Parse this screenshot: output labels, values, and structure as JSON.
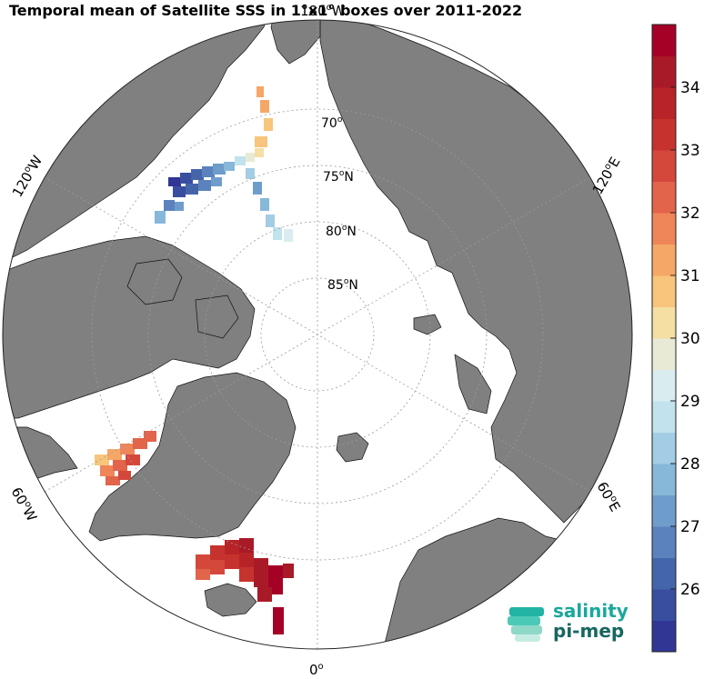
{
  "title": "Temporal mean of Satellite SSS in 1°x1° boxes over 2011-2022",
  "map": {
    "projection": "north polar stereographic",
    "land_color": "#808080",
    "ocean_color": "#ffffff",
    "lat_labels": [
      {
        "text": "70",
        "sup": "o"
      },
      {
        "text": "75",
        "sup": "o",
        "suffix": "N"
      },
      {
        "text": "80",
        "sup": "o",
        "suffix": "N"
      },
      {
        "text": "85",
        "sup": "o",
        "suffix": "N"
      }
    ],
    "lon_labels": [
      {
        "text": "180",
        "sup": "o",
        "suffix": "W"
      },
      {
        "text": "120",
        "sup": "o",
        "suffix": "W"
      },
      {
        "text": "120",
        "sup": "o",
        "suffix": "E"
      },
      {
        "text": "60",
        "sup": "o",
        "suffix": "W"
      },
      {
        "text": "60",
        "sup": "o",
        "suffix": "E"
      },
      {
        "text": "0",
        "sup": "o",
        "suffix": ""
      }
    ]
  },
  "colorbar": {
    "min": 25,
    "max": 35,
    "ticks": [
      26,
      27,
      28,
      29,
      30,
      31,
      32,
      33,
      34
    ],
    "colors": [
      "#313695",
      "#3a4ea0",
      "#4565ab",
      "#5b82bd",
      "#6f9dcb",
      "#87b8d9",
      "#a3cde4",
      "#c2e2ee",
      "#d9edf0",
      "#e9ead6",
      "#f5dfa3",
      "#f7c57b",
      "#f5a767",
      "#ef865a",
      "#e1644b",
      "#d4483c",
      "#c6332e",
      "#b72327",
      "#a91a28",
      "#a50026"
    ]
  },
  "logo": {
    "line1": "salinity",
    "line2": "pi-mep"
  }
}
